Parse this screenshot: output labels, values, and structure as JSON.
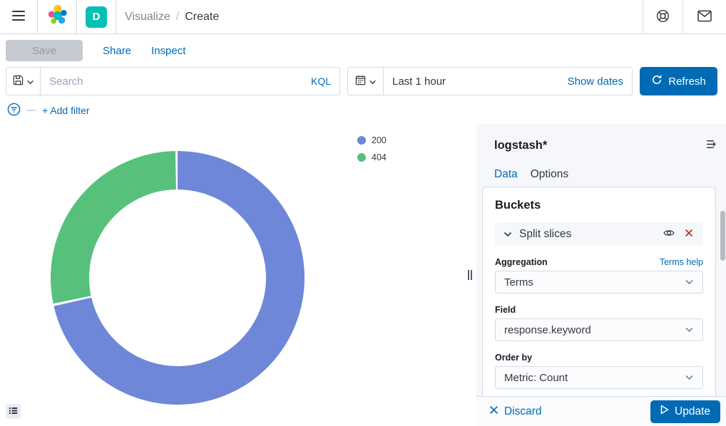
{
  "header": {
    "space_initial": "D",
    "breadcrumb": {
      "section": "Visualize",
      "separator": "/",
      "current": "Create"
    }
  },
  "toolbar": {
    "save_label": "Save",
    "share_label": "Share",
    "inspect_label": "Inspect"
  },
  "query_bar": {
    "search_placeholder": "Search",
    "language_label": "KQL",
    "time_value": "Last 1 hour",
    "show_dates_label": "Show dates",
    "refresh_label": "Refresh"
  },
  "filter_bar": {
    "add_filter_label": "+ Add filter"
  },
  "chart_data": {
    "type": "pie",
    "subtype": "donut",
    "title": "",
    "categories": [
      "200",
      "404"
    ],
    "values_percent": [
      71.7,
      28.3
    ],
    "colors": [
      "#6F87D8",
      "#57C17B"
    ],
    "legend_position": "right",
    "start_angle_deg": 0,
    "direction": "clockwise",
    "inner_radius_ratio": 0.7
  },
  "legend": {
    "items": [
      {
        "label": "200",
        "color": "#6F87D8"
      },
      {
        "label": "404",
        "color": "#57C17B"
      }
    ]
  },
  "sidebar": {
    "index_pattern": "logstash*",
    "tabs": [
      {
        "label": "Data"
      },
      {
        "label": "Options"
      }
    ],
    "buckets": {
      "title": "Buckets",
      "accordion_label": "Split slices",
      "aggregation": {
        "label": "Aggregation",
        "help_label": "Terms help",
        "value": "Terms"
      },
      "field": {
        "label": "Field",
        "value": "response.keyword"
      },
      "order_by": {
        "label": "Order by",
        "value": "Metric: Count"
      }
    },
    "actions": {
      "discard_label": "Discard",
      "update_label": "Update"
    }
  },
  "colors": {
    "primary": "#006BB4",
    "danger": "#BD271E",
    "avatar": "#00BFB3",
    "border": "#D3DAE6"
  }
}
